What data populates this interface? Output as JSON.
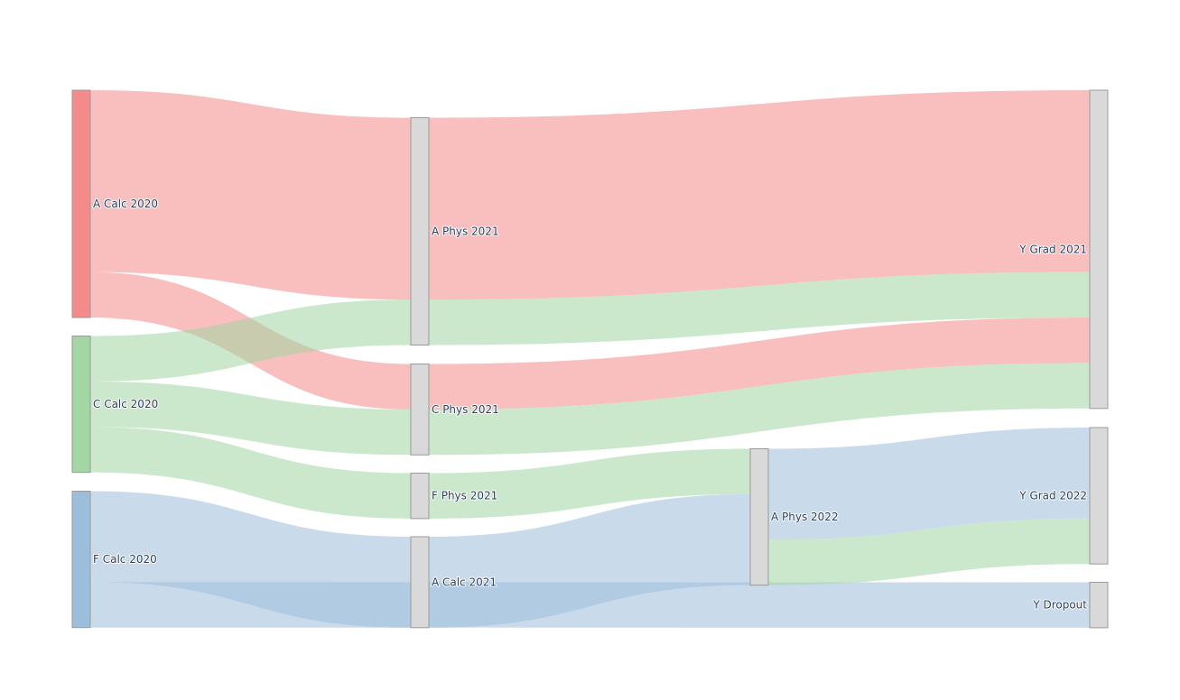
{
  "chart_data": {
    "type": "sankey",
    "nodes": [
      {
        "id": "a_calc_2020",
        "label": "A Calc 2020",
        "color": "#f28b89"
      },
      {
        "id": "c_calc_2020",
        "label": "C Calc 2020",
        "color": "#a3d6a3"
      },
      {
        "id": "f_calc_2020",
        "label": "F Calc 2020",
        "color": "#9dbedb"
      },
      {
        "id": "a_phys_2021",
        "label": "A Phys 2021",
        "color": "#d9d9d9"
      },
      {
        "id": "c_phys_2021",
        "label": "C Phys 2021",
        "color": "#d9d9d9"
      },
      {
        "id": "f_phys_2021",
        "label": "F Phys 2021",
        "color": "#d9d9d9"
      },
      {
        "id": "a_calc_2021",
        "label": "A Calc 2021",
        "color": "#d9d9d9"
      },
      {
        "id": "a_phys_2022",
        "label": "A Phys 2022",
        "color": "#d9d9d9"
      },
      {
        "id": "y_grad_2021",
        "label": "Y Grad 2021",
        "color": "#d9d9d9"
      },
      {
        "id": "y_grad_2022",
        "label": "Y Grad 2022",
        "color": "#d9d9d9"
      },
      {
        "id": "y_dropout",
        "label": "Y Dropout",
        "color": "#d9d9d9"
      }
    ],
    "links": [
      {
        "source": "a_calc_2020",
        "target": "a_phys_2021",
        "value": 4,
        "color": "#f28b89"
      },
      {
        "source": "a_calc_2020",
        "target": "c_phys_2021",
        "value": 1,
        "color": "#f28b89"
      },
      {
        "source": "c_calc_2020",
        "target": "a_phys_2021",
        "value": 1,
        "color": "#a3d6a3"
      },
      {
        "source": "c_calc_2020",
        "target": "c_phys_2021",
        "value": 1,
        "color": "#a3d6a3"
      },
      {
        "source": "c_calc_2020",
        "target": "f_phys_2021",
        "value": 1,
        "color": "#a3d6a3"
      },
      {
        "source": "f_calc_2020",
        "target": "a_calc_2021",
        "value": 2,
        "color": "#9dbedb"
      },
      {
        "source": "f_calc_2020",
        "target": "y_dropout",
        "value": 1,
        "color": "#9dbedb"
      },
      {
        "source": "a_phys_2021",
        "target": "y_grad_2021",
        "value": 4,
        "color": "#f28b89"
      },
      {
        "source": "a_phys_2021",
        "target": "y_grad_2021",
        "value": 1,
        "color": "#a3d6a3"
      },
      {
        "source": "c_phys_2021",
        "target": "y_grad_2021",
        "value": 1,
        "color": "#f28b89"
      },
      {
        "source": "c_phys_2021",
        "target": "y_grad_2021",
        "value": 1,
        "color": "#a3d6a3"
      },
      {
        "source": "f_phys_2021",
        "target": "a_phys_2022",
        "value": 1,
        "color": "#a3d6a3"
      },
      {
        "source": "a_calc_2021",
        "target": "a_phys_2022",
        "value": 2,
        "color": "#9dbedb"
      },
      {
        "source": "a_phys_2022",
        "target": "y_grad_2022",
        "value": 2,
        "color": "#9dbedb"
      },
      {
        "source": "a_phys_2022",
        "target": "y_grad_2022",
        "value": 1,
        "color": "#a3d6a3"
      }
    ],
    "title": "",
    "colors": {
      "red": "#f28b89",
      "green": "#a3d6a3",
      "blue": "#9dbedb",
      "node_gray": "#d9d9d9",
      "background": "#ffffff"
    }
  }
}
